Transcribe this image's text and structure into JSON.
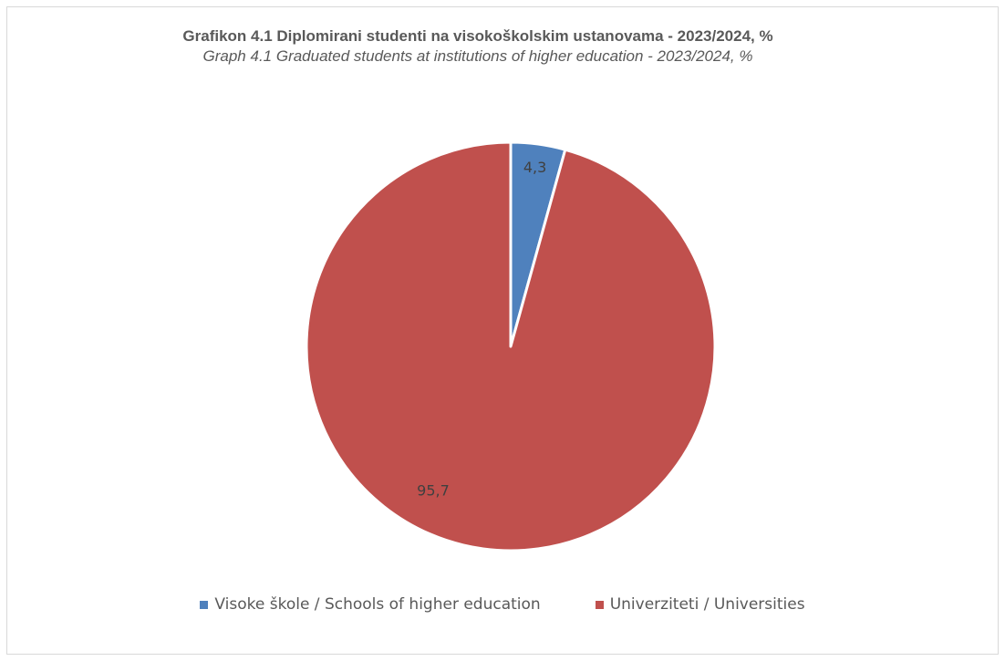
{
  "chart_data": {
    "type": "pie",
    "title": "Grafikon 4.1 Diplomirani studenti na visokoškolskim ustanovama  - 2023/2024, %",
    "subtitle": "Graph 4.1 Graduated students at institutions of higher education  - 2023/2024, %",
    "series": [
      {
        "categories": [
          "Visoke škole / Schools of higher education",
          "Univerziteti / Universities"
        ],
        "values": [
          4.3,
          95.7
        ],
        "value_labels": [
          "4,3",
          "95,7"
        ],
        "colors": [
          "#4f81bd",
          "#c0504d"
        ]
      }
    ],
    "legend_position": "bottom"
  }
}
